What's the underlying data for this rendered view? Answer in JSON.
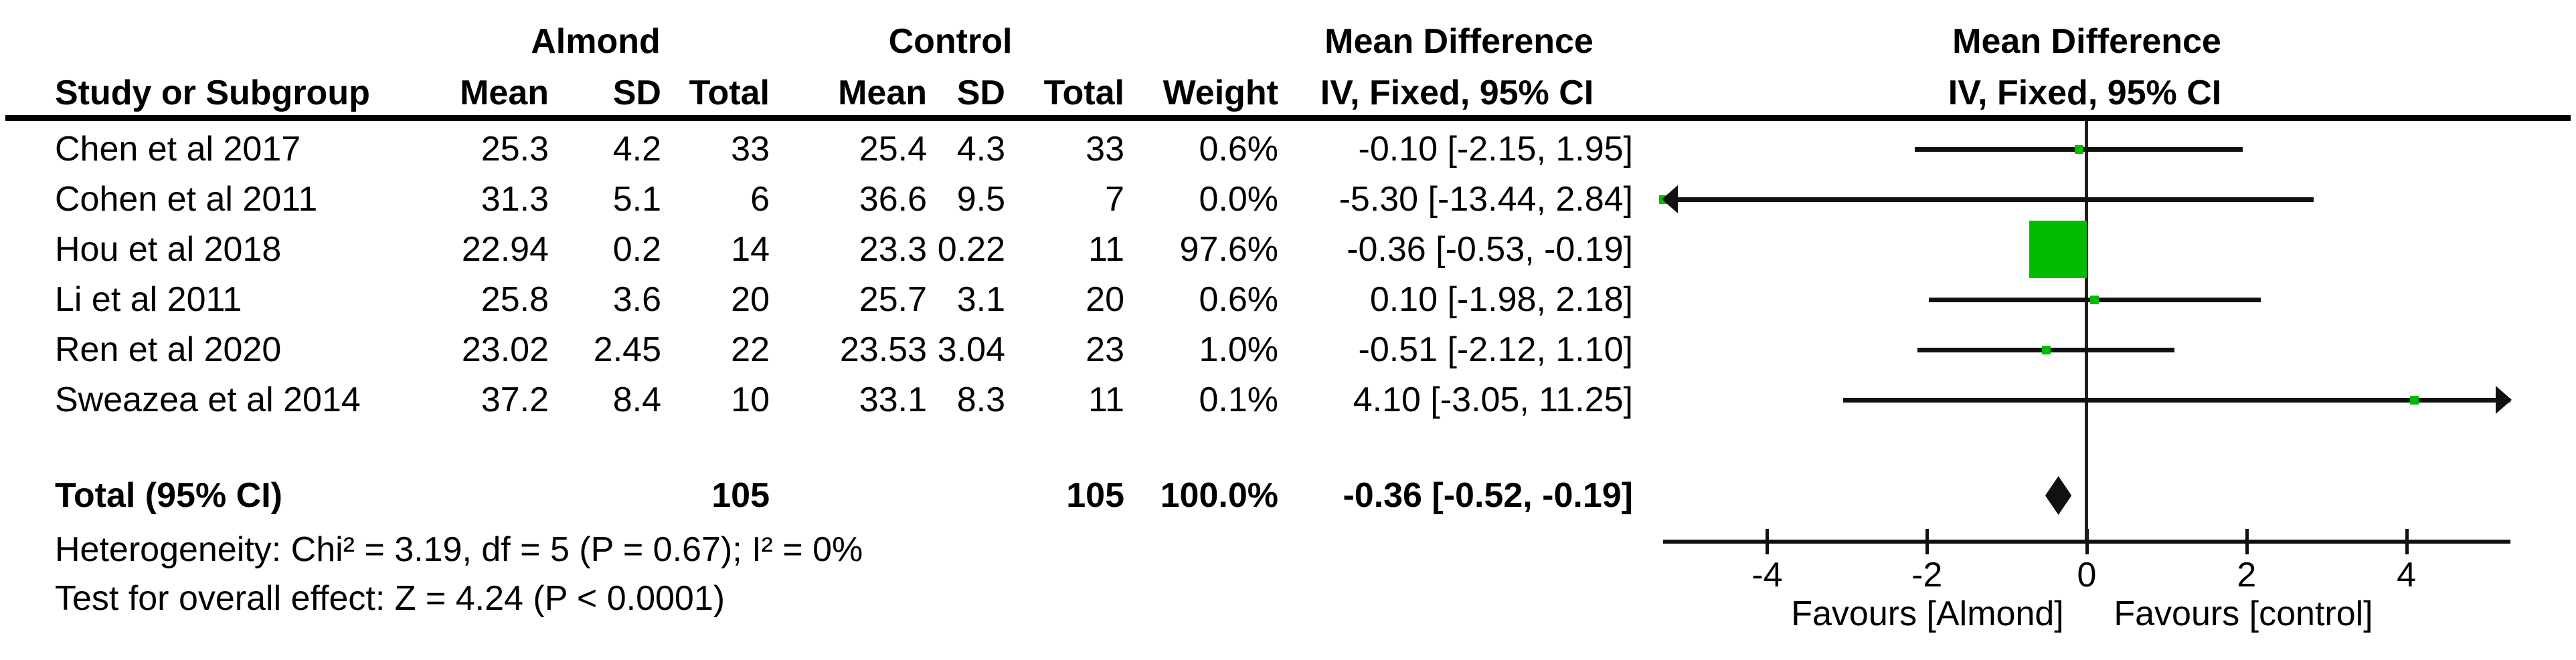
{
  "table": {
    "group1_label": "Almond",
    "group2_label": "Control",
    "effect_label": "Mean Difference",
    "effect_sub_label": "IV, Fixed, 95% CI",
    "col_headers": {
      "study": "Study or Subgroup",
      "mean": "Mean",
      "sd": "SD",
      "total": "Total",
      "weight": "Weight"
    },
    "studies": [
      {
        "name": "Chen et al 2017",
        "mean1": "25.3",
        "sd1": "4.2",
        "n1": "33",
        "mean2": "25.4",
        "sd2": "4.3",
        "n2": "33",
        "weight": "0.6%",
        "ci": "-0.10 [-2.15, 1.95]"
      },
      {
        "name": "Cohen et al 2011",
        "mean1": "31.3",
        "sd1": "5.1",
        "n1": "6",
        "mean2": "36.6",
        "sd2": "9.5",
        "n2": "7",
        "weight": "0.0%",
        "ci": "-5.30 [-13.44, 2.84]"
      },
      {
        "name": "Hou et al 2018",
        "mean1": "22.94",
        "sd1": "0.2",
        "n1": "14",
        "mean2": "23.3",
        "sd2": "0.22",
        "n2": "11",
        "weight": "97.6%",
        "ci": "-0.36 [-0.53, -0.19]"
      },
      {
        "name": "Li et al 2011",
        "mean1": "25.8",
        "sd1": "3.6",
        "n1": "20",
        "mean2": "25.7",
        "sd2": "3.1",
        "n2": "20",
        "weight": "0.6%",
        "ci": "0.10 [-1.98, 2.18]"
      },
      {
        "name": "Ren et al 2020",
        "mean1": "23.02",
        "sd1": "2.45",
        "n1": "22",
        "mean2": "23.53",
        "sd2": "3.04",
        "n2": "23",
        "weight": "1.0%",
        "ci": "-0.51 [-2.12, 1.10]"
      },
      {
        "name": "Sweazea et al 2014",
        "mean1": "37.2",
        "sd1": "8.4",
        "n1": "10",
        "mean2": "33.1",
        "sd2": "8.3",
        "n2": "11",
        "weight": "0.1%",
        "ci": "4.10 [-3.05, 11.25]"
      }
    ],
    "total_row": {
      "label": "Total (95% CI)",
      "n1": "105",
      "n2": "105",
      "weight": "100.0%",
      "ci": "-0.36 [-0.52, -0.19]"
    },
    "heterogeneity": "Heterogeneity: Chi² = 3.19, df = 5 (P = 0.67); I² = 0%",
    "overall_effect": "Test for overall effect: Z = 4.24 (P < 0.0001)"
  },
  "plot": {
    "header_line1": "Mean Difference",
    "header_line2": "IV, Fixed, 95% CI",
    "favours_left": "Favours [Almond]",
    "favours_right": "Favours [control]",
    "marker_color": "#00bc00",
    "line_color": "#111111"
  },
  "chart_data": {
    "type": "forest",
    "title": "Mean Difference  IV, Fixed, 95% CI",
    "x_ticks": [
      -4,
      -2,
      0,
      2,
      4
    ],
    "xlim": [
      -5.3,
      5.3
    ],
    "x_axis_labels": {
      "left": "Favours [Almond]",
      "right": "Favours [control]"
    },
    "studies": [
      {
        "name": "Chen et al 2017",
        "md": -0.1,
        "ci_low": -2.15,
        "ci_high": 1.95,
        "weight_pct": 0.6
      },
      {
        "name": "Cohen et al 2011",
        "md": -5.3,
        "ci_low": -13.44,
        "ci_high": 2.84,
        "weight_pct": 0.0
      },
      {
        "name": "Hou et al 2018",
        "md": -0.36,
        "ci_low": -0.53,
        "ci_high": -0.19,
        "weight_pct": 97.6
      },
      {
        "name": "Li et al 2011",
        "md": 0.1,
        "ci_low": -1.98,
        "ci_high": 2.18,
        "weight_pct": 0.6
      },
      {
        "name": "Ren et al 2020",
        "md": -0.51,
        "ci_low": -2.12,
        "ci_high": 1.1,
        "weight_pct": 1.0
      },
      {
        "name": "Sweazea et al 2014",
        "md": 4.1,
        "ci_low": -3.05,
        "ci_high": 11.25,
        "weight_pct": 0.1
      }
    ],
    "total": {
      "name": "Total (95% CI)",
      "md": -0.36,
      "ci_low": -0.52,
      "ci_high": -0.19,
      "weight_pct": 100.0
    }
  }
}
